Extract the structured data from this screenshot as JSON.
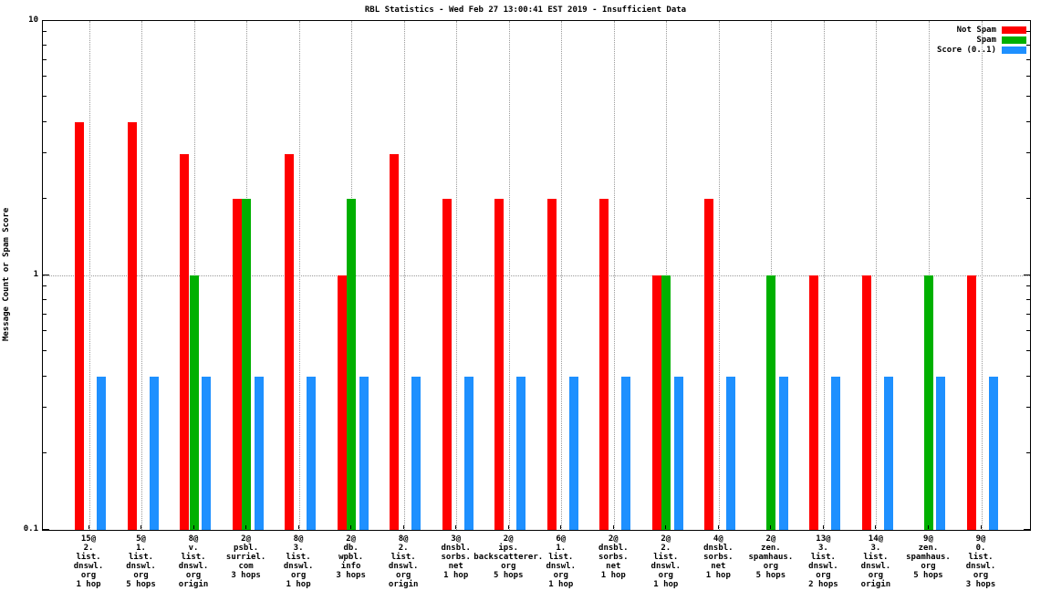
{
  "title": "RBL Statistics - Wed Feb 27 13:00:41 EST 2019 - Insufficient Data",
  "y_axis_label": "Message Count or Spam Score",
  "chart_data": {
    "type": "bar",
    "y_scale": "log",
    "ylim": [
      0.1,
      10
    ],
    "grid": true,
    "legend_position": "top-right-inside",
    "y_ticks": [
      {
        "label": "10",
        "value": 10
      },
      {
        "label": "1",
        "value": 1
      },
      {
        "label": "0.1",
        "value": 0.1
      }
    ],
    "categories": [
      [
        "15@",
        "2.",
        "list.",
        "dnswl.",
        "org",
        "1 hop"
      ],
      [
        "5@",
        "1.",
        "list.",
        "dnswl.",
        "org",
        "5 hops"
      ],
      [
        "8@",
        "v.",
        "list.",
        "dnswl.",
        "org",
        "origin"
      ],
      [
        "2@",
        "psbl.",
        "surriel.",
        "com",
        "3 hops"
      ],
      [
        "8@",
        "3.",
        "list.",
        "dnswl.",
        "org",
        "1 hop"
      ],
      [
        "2@",
        "db.",
        "wpbl.",
        "info",
        "3 hops"
      ],
      [
        "8@",
        "2.",
        "list.",
        "dnswl.",
        "org",
        "origin"
      ],
      [
        "3@",
        "dnsbl.",
        "sorbs.",
        "net",
        "1 hop"
      ],
      [
        "2@",
        "ips.",
        "backscatterer.",
        "org",
        "5 hops"
      ],
      [
        "6@",
        "1.",
        "list.",
        "dnswl.",
        "org",
        "1 hop"
      ],
      [
        "2@",
        "dnsbl.",
        "sorbs.",
        "net",
        "1 hop"
      ],
      [
        "2@",
        "2.",
        "list.",
        "dnswl.",
        "org",
        "1 hop"
      ],
      [
        "4@",
        "dnsbl.",
        "sorbs.",
        "net",
        "1 hop"
      ],
      [
        "2@",
        "zen.",
        "spamhaus.",
        "org",
        "5 hops"
      ],
      [
        "13@",
        "3.",
        "list.",
        "dnswl.",
        "org",
        "2 hops"
      ],
      [
        "14@",
        "3.",
        "list.",
        "dnswl.",
        "org",
        "origin"
      ],
      [
        "9@",
        "zen.",
        "spamhaus.",
        "org",
        "5 hops"
      ],
      [
        "9@",
        "0.",
        "list.",
        "dnswl.",
        "org",
        "3 hops"
      ]
    ],
    "series": [
      {
        "name": "Not Spam",
        "color": "#ff0000",
        "values": [
          4,
          4,
          3,
          2,
          3,
          1,
          3,
          2,
          2,
          2,
          2,
          1,
          2,
          0,
          1,
          1,
          0,
          1
        ]
      },
      {
        "name": "Spam",
        "color": "#00b000",
        "values": [
          0,
          0,
          1,
          2,
          0,
          2,
          0,
          0,
          0,
          0,
          0,
          1,
          0,
          1,
          0,
          0,
          1,
          0
        ]
      },
      {
        "name": "Score (0..1)",
        "color": "#1e90ff",
        "values": [
          0.4,
          0.4,
          0.4,
          0.4,
          0.4,
          0.4,
          0.4,
          0.4,
          0.4,
          0.4,
          0.4,
          0.4,
          0.4,
          0.4,
          0.4,
          0.4,
          0.4,
          0.4
        ]
      }
    ]
  }
}
